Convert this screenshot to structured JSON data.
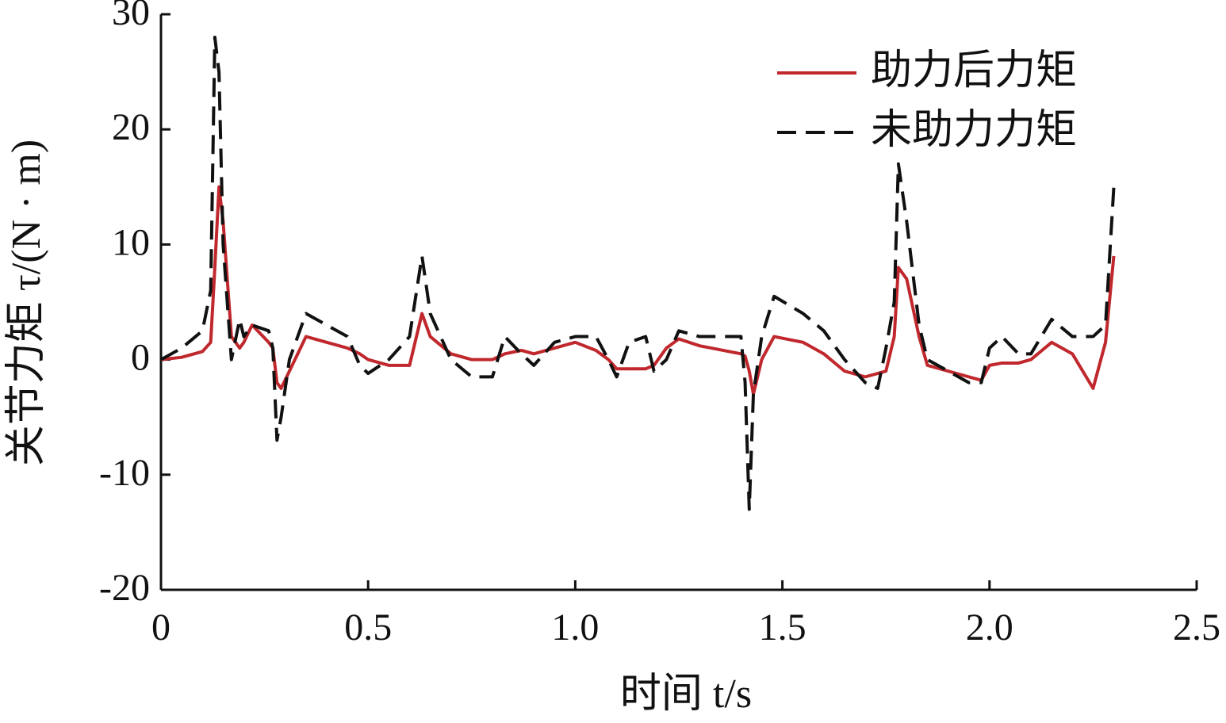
{
  "chart_data": {
    "type": "line",
    "x_label": "时间 t/s",
    "y_label": "关节力矩 τ/(N · m)",
    "x": [
      0,
      0.05,
      0.1,
      0.12,
      0.13,
      0.14,
      0.15,
      0.17,
      0.19,
      0.2,
      0.22,
      0.26,
      0.27,
      0.28,
      0.29,
      0.31,
      0.35,
      0.4,
      0.45,
      0.48,
      0.5,
      0.55,
      0.6,
      0.63,
      0.65,
      0.7,
      0.75,
      0.8,
      0.83,
      0.87,
      0.9,
      0.95,
      1.0,
      1.05,
      1.08,
      1.1,
      1.13,
      1.17,
      1.19,
      1.22,
      1.25,
      1.3,
      1.4,
      1.41,
      1.42,
      1.43,
      1.45,
      1.48,
      1.55,
      1.6,
      1.65,
      1.7,
      1.73,
      1.75,
      1.77,
      1.78,
      1.8,
      1.83,
      1.85,
      1.9,
      1.95,
      1.98,
      2.0,
      2.03,
      2.07,
      2.1,
      2.15,
      2.2,
      2.25,
      2.28,
      2.3
    ],
    "series": [
      {
        "name": "助力后力矩",
        "color": "#c0282d",
        "dashed": false,
        "values": [
          0,
          0.2,
          0.7,
          1.5,
          8,
          15,
          12,
          2,
          1,
          1.5,
          3,
          1.5,
          1,
          -2,
          -2.5,
          -1,
          2,
          1.5,
          1,
          0.5,
          0,
          -0.5,
          -0.5,
          4,
          2,
          0.5,
          0,
          0,
          0.5,
          0.8,
          0.5,
          1,
          1.5,
          0.8,
          0,
          -0.8,
          -0.8,
          -0.8,
          -0.5,
          1,
          1.8,
          1.2,
          0.5,
          0.3,
          -1,
          -3,
          0,
          2,
          1.5,
          0.5,
          -1,
          -1.5,
          -1.2,
          -1,
          2,
          8,
          7,
          2,
          -0.5,
          -1,
          -1.5,
          -1.8,
          -0.5,
          -0.3,
          -0.3,
          0,
          1.5,
          0.5,
          -2.5,
          1.5,
          9
        ]
      },
      {
        "name": "未助力力矩",
        "color": "#111111",
        "dashed": true,
        "values": [
          0,
          1,
          2.5,
          6,
          28,
          25,
          10,
          0,
          3.5,
          2,
          3,
          2.5,
          1,
          -7,
          -5,
          0,
          4,
          3,
          2,
          -0.5,
          -1.2,
          0,
          2,
          9,
          4,
          0,
          -1.5,
          -1.5,
          2,
          0.5,
          -0.5,
          1.5,
          2,
          2,
          0,
          -1.5,
          1.5,
          2,
          -1,
          0,
          2.5,
          2,
          2,
          -2,
          -13,
          -3,
          2,
          5.5,
          4,
          2.5,
          0,
          -2,
          -2.5,
          1,
          5,
          17,
          12,
          3,
          0,
          -1,
          -2,
          -2,
          1,
          2,
          0.5,
          0.5,
          3.5,
          2,
          2,
          3,
          15
        ]
      }
    ],
    "xlim": [
      0,
      2.5
    ],
    "xticks": [
      0,
      0.5,
      {
        "value": 1,
        "label": "1.0"
      },
      1.5,
      {
        "value": 2,
        "label": "2.0"
      },
      2.5
    ],
    "ylim": [
      -20,
      30
    ],
    "yticks": [
      -20,
      -10,
      0,
      10,
      20,
      30
    ],
    "legend": "upper right"
  }
}
